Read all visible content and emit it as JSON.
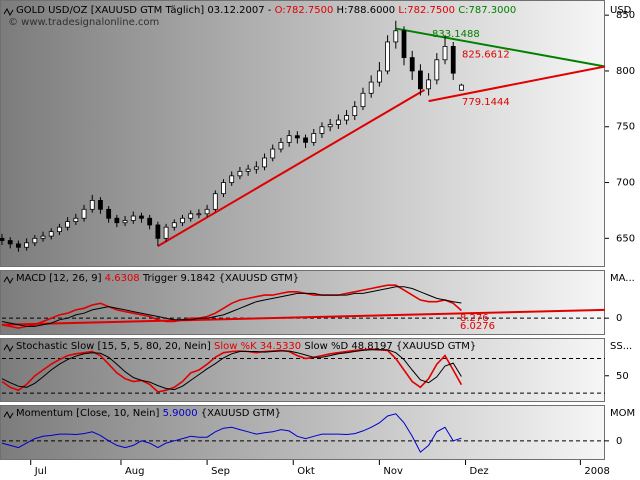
{
  "chart_data": [
    {
      "type": "candlestick",
      "header": [
        {
          "text": "GOLD USD/OZ [XAUUSD GTM Täglich] 03.12.2007 - ",
          "color": "#000000"
        },
        {
          "text": "O:782.7500",
          "color": "#e00000"
        },
        {
          "text": " H:788.6000",
          "color": "#000000"
        },
        {
          "text": " L:782.7500",
          "color": "#e00000"
        },
        {
          "text": " C:787.3000",
          "color": "#008000"
        }
      ],
      "watermark": "© www.tradesignalonline.com",
      "unit": "USD",
      "x": [
        0,
        2,
        4,
        6,
        8,
        10,
        12,
        14,
        16,
        18,
        20,
        22,
        24,
        26,
        28,
        30,
        32,
        34,
        36,
        38,
        40,
        42,
        44,
        46,
        48,
        50,
        52,
        54,
        56,
        58,
        60,
        62,
        64,
        66,
        68,
        70,
        72,
        74,
        76,
        78,
        80,
        82,
        84,
        86,
        88,
        90,
        92,
        94,
        96,
        98,
        100,
        102,
        104,
        106,
        108,
        110,
        112
      ],
      "open": [
        650,
        648,
        645,
        642,
        646,
        650,
        652,
        656,
        660,
        665,
        668,
        676,
        684,
        676,
        668,
        664,
        666,
        670,
        668,
        662,
        650,
        660,
        664,
        668,
        672,
        672,
        676,
        690,
        700,
        706,
        710,
        712,
        714,
        722,
        730,
        736,
        742,
        740,
        736,
        744,
        750,
        752,
        756,
        760,
        768,
        780,
        790,
        800,
        826,
        836,
        812,
        800,
        784,
        792,
        810,
        822,
        782.75
      ],
      "high": [
        654,
        651,
        648,
        650,
        653,
        656,
        659,
        663,
        669,
        672,
        680,
        689,
        687,
        679,
        671,
        670,
        674,
        673,
        671,
        665,
        663,
        667,
        671,
        675,
        676,
        680,
        693,
        703,
        710,
        714,
        716,
        719,
        726,
        734,
        740,
        747,
        746,
        743,
        748,
        754,
        757,
        761,
        765,
        773,
        785,
        796,
        808,
        832,
        845,
        840,
        818,
        806,
        798,
        816,
        832,
        826,
        788.6
      ],
      "low": [
        644,
        641,
        638,
        639,
        643,
        647,
        649,
        653,
        657,
        662,
        665,
        673,
        672,
        664,
        660,
        661,
        663,
        664,
        658,
        643,
        647,
        657,
        661,
        665,
        668,
        669,
        674,
        687,
        697,
        703,
        706,
        708,
        711,
        719,
        727,
        732,
        735,
        731,
        733,
        740,
        746,
        748,
        752,
        756,
        765,
        776,
        786,
        797,
        820,
        805,
        792,
        778,
        778,
        788,
        806,
        792,
        782.75
      ],
      "close": [
        648,
        645,
        642,
        646,
        650,
        652,
        656,
        660,
        665,
        668,
        676,
        684,
        676,
        668,
        664,
        666,
        670,
        668,
        662,
        650,
        660,
        664,
        668,
        672,
        672,
        676,
        690,
        700,
        706,
        710,
        712,
        714,
        722,
        730,
        736,
        742,
        740,
        736,
        744,
        750,
        752,
        756,
        760,
        768,
        780,
        790,
        800,
        826,
        836,
        812,
        800,
        784,
        792,
        810,
        822,
        798,
        787.3
      ],
      "up_color": "#ffffff",
      "down_color": "#000000",
      "xlim": [
        0,
        147
      ],
      "xticks": [
        {
          "value": 7,
          "label": "Jul"
        },
        {
          "value": 29,
          "label": "Aug"
        },
        {
          "value": 50,
          "label": "Sep"
        },
        {
          "value": 71,
          "label": "Okt"
        },
        {
          "value": 92,
          "label": "Nov"
        },
        {
          "value": 113,
          "label": "Dez"
        },
        {
          "value": 141,
          "label": "2008"
        }
      ],
      "ylim": [
        627,
        860
      ],
      "yticks": [
        650,
        700,
        750,
        800,
        850
      ],
      "grid": false,
      "trendlines": [
        {
          "color": "#e00000",
          "x": [
            38,
            103
          ],
          "y": [
            643,
            783
          ]
        },
        {
          "color": "#008000",
          "x": [
            96,
            147
          ],
          "y": [
            838,
            804
          ]
        },
        {
          "color": "#e00000",
          "x": [
            104,
            147
          ],
          "y": [
            773,
            804
          ]
        }
      ],
      "annotations": [
        {
          "value": 833.1488,
          "color": "#008000"
        },
        {
          "value": 825.6612,
          "color": "#e00000"
        },
        {
          "value": 779.1444,
          "color": "#e00000"
        }
      ]
    },
    {
      "type": "line",
      "header": [
        {
          "text": "MACD [12, 26, 9] ",
          "color": "#000000"
        },
        {
          "text": "4.6308",
          "color": "#e00000"
        },
        {
          "text": " Trigger 9.1842 {XAUUSD GTM}",
          "color": "#000000"
        }
      ],
      "unit": "MA...",
      "ylim": [
        -9,
        28
      ],
      "yticks": [
        0
      ],
      "grid": true,
      "series": [
        {
          "name": "MACD",
          "color": "#e00000",
          "values": [
            -4,
            -5,
            -6,
            -5,
            -4,
            -2,
            0,
            2,
            3,
            5,
            6,
            8,
            9,
            7,
            5,
            4,
            3,
            2,
            1,
            -1,
            -2,
            -2,
            -1,
            0,
            0,
            1,
            3,
            6,
            9,
            11,
            12,
            13,
            14,
            14,
            15,
            16,
            16,
            15,
            14,
            14,
            14,
            14,
            15,
            16,
            17,
            18,
            19,
            20,
            20,
            17,
            14,
            11,
            10,
            10,
            11,
            9,
            4.6308
          ]
        },
        {
          "name": "Trigger",
          "color": "#000000",
          "values": [
            -2,
            -3,
            -4,
            -5,
            -5,
            -4,
            -3,
            -1,
            0,
            2,
            3,
            5,
            6,
            7,
            6,
            5,
            4,
            3,
            2,
            1,
            0,
            -1,
            -1,
            -1,
            0,
            0,
            1,
            2,
            4,
            6,
            8,
            10,
            11,
            12,
            13,
            14,
            15,
            15,
            15,
            14,
            14,
            14,
            14,
            15,
            15,
            16,
            17,
            18,
            19,
            19,
            18,
            16,
            14,
            12,
            11,
            10,
            9.1842
          ]
        }
      ],
      "trendlines": [
        {
          "color": "#e00000",
          "x": [
            0,
            147
          ],
          "y": [
            -4,
            5
          ]
        }
      ],
      "end_labels": [
        {
          "text": "8.276",
          "color": "#e00000"
        },
        {
          "text": "6.0276",
          "color": "#e00000"
        }
      ]
    },
    {
      "type": "line",
      "header": [
        {
          "text": "Stochastic Slow [15, 5, 5, 80, 20, Nein] ",
          "color": "#000000"
        },
        {
          "text": "Slow %K 34.5330",
          "color": "#e00000"
        },
        {
          "text": " Slow %D 48.8197 {XAUUSD GTM}",
          "color": "#000000"
        }
      ],
      "unit": "SS...",
      "ylim": [
        8,
        112
      ],
      "yticks": [
        50
      ],
      "grid": false,
      "levels": [
        20,
        80
      ],
      "series": [
        {
          "name": "Slow %K",
          "color": "#e00000",
          "values": [
            40,
            30,
            25,
            35,
            50,
            60,
            70,
            78,
            85,
            88,
            90,
            92,
            85,
            70,
            55,
            45,
            40,
            42,
            35,
            22,
            25,
            30,
            40,
            55,
            60,
            70,
            82,
            90,
            92,
            93,
            92,
            90,
            92,
            93,
            94,
            92,
            85,
            80,
            82,
            85,
            88,
            90,
            92,
            94,
            95,
            96,
            95,
            94,
            80,
            60,
            40,
            30,
            45,
            70,
            85,
            60,
            34.533
          ]
        },
        {
          "name": "Slow %D",
          "color": "#000000",
          "values": [
            45,
            38,
            32,
            30,
            37,
            48,
            60,
            70,
            78,
            84,
            88,
            90,
            89,
            82,
            70,
            57,
            47,
            42,
            39,
            33,
            28,
            26,
            32,
            42,
            52,
            62,
            71,
            81,
            88,
            92,
            92,
            92,
            91,
            92,
            93,
            93,
            90,
            86,
            82,
            82,
            85,
            88,
            90,
            92,
            94,
            95,
            95,
            95,
            90,
            78,
            60,
            43,
            38,
            48,
            67,
            72,
            48.8197
          ]
        }
      ]
    },
    {
      "type": "line",
      "header": [
        {
          "text": "Momentum [Close, 10, Nein] ",
          "color": "#000000"
        },
        {
          "text": "5.9000",
          "color": "#0000cc"
        },
        {
          "text": " {XAUUSD GTM}",
          "color": "#000000"
        }
      ],
      "unit": "MOM",
      "ylim": [
        -38,
        75
      ],
      "yticks": [
        0
      ],
      "grid": true,
      "series": [
        {
          "name": "Momentum",
          "color": "#0000cc",
          "values": [
            -5,
            -10,
            -15,
            -5,
            5,
            10,
            12,
            15,
            15,
            14,
            16,
            20,
            12,
            0,
            -10,
            -15,
            -10,
            0,
            -5,
            -15,
            -5,
            0,
            5,
            10,
            8,
            8,
            20,
            28,
            30,
            25,
            20,
            15,
            18,
            20,
            25,
            22,
            10,
            5,
            10,
            15,
            15,
            15,
            14,
            16,
            22,
            30,
            40,
            55,
            60,
            40,
            10,
            -25,
            -10,
            20,
            30,
            0,
            5.9
          ]
        }
      ]
    }
  ]
}
